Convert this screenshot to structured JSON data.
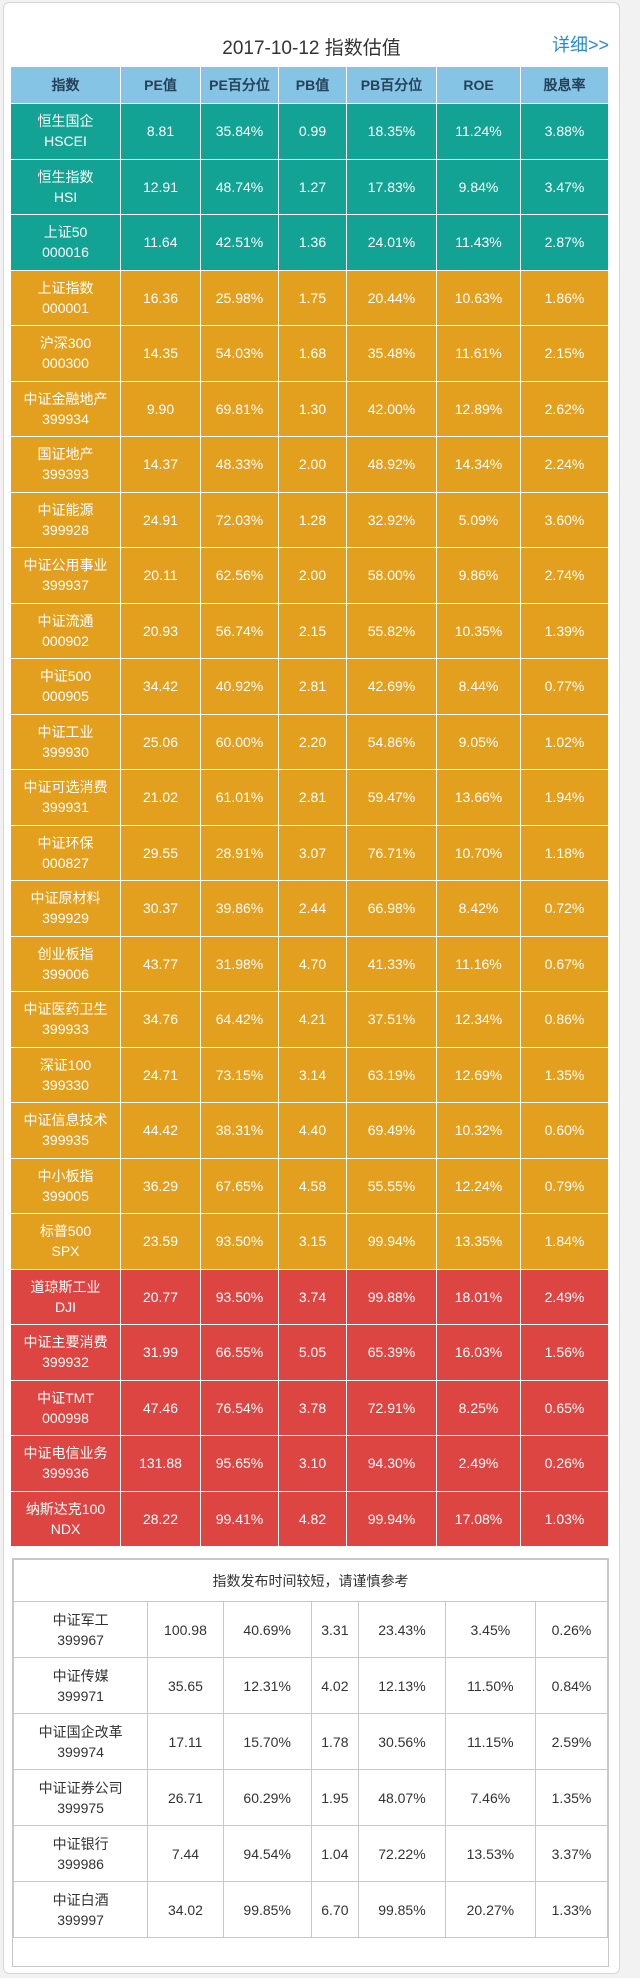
{
  "title": "2017-10-12  指数估值",
  "detail_link": "详细>>",
  "headers": [
    "指数",
    "PE值",
    "PE百分位",
    "PB值",
    "PB百分位",
    "ROE",
    "股息率"
  ],
  "colors": {
    "green": "#13a394",
    "orange": "#e3a01f",
    "red": "#dc4542",
    "header": "#86c4e6"
  },
  "rows": [
    {
      "name": "恒生国企",
      "code": "HSCEI",
      "pe": "8.81",
      "pe_pct": "35.84%",
      "pb": "0.99",
      "pb_pct": "18.35%",
      "roe": "11.24%",
      "div": "3.88%",
      "tier": "green"
    },
    {
      "name": "恒生指数",
      "code": "HSI",
      "pe": "12.91",
      "pe_pct": "48.74%",
      "pb": "1.27",
      "pb_pct": "17.83%",
      "roe": "9.84%",
      "div": "3.47%",
      "tier": "green"
    },
    {
      "name": "上证50",
      "code": "000016",
      "pe": "11.64",
      "pe_pct": "42.51%",
      "pb": "1.36",
      "pb_pct": "24.01%",
      "roe": "11.43%",
      "div": "2.87%",
      "tier": "green"
    },
    {
      "name": "上证指数",
      "code": "000001",
      "pe": "16.36",
      "pe_pct": "25.98%",
      "pb": "1.75",
      "pb_pct": "20.44%",
      "roe": "10.63%",
      "div": "1.86%",
      "tier": "orange"
    },
    {
      "name": "沪深300",
      "code": "000300",
      "pe": "14.35",
      "pe_pct": "54.03%",
      "pb": "1.68",
      "pb_pct": "35.48%",
      "roe": "11.61%",
      "div": "2.15%",
      "tier": "orange"
    },
    {
      "name": "中证金融地产",
      "code": "399934",
      "pe": "9.90",
      "pe_pct": "69.81%",
      "pb": "1.30",
      "pb_pct": "42.00%",
      "roe": "12.89%",
      "div": "2.62%",
      "tier": "orange"
    },
    {
      "name": "国证地产",
      "code": "399393",
      "pe": "14.37",
      "pe_pct": "48.33%",
      "pb": "2.00",
      "pb_pct": "48.92%",
      "roe": "14.34%",
      "div": "2.24%",
      "tier": "orange"
    },
    {
      "name": "中证能源",
      "code": "399928",
      "pe": "24.91",
      "pe_pct": "72.03%",
      "pb": "1.28",
      "pb_pct": "32.92%",
      "roe": "5.09%",
      "div": "3.60%",
      "tier": "orange"
    },
    {
      "name": "中证公用事业",
      "code": "399937",
      "pe": "20.11",
      "pe_pct": "62.56%",
      "pb": "2.00",
      "pb_pct": "58.00%",
      "roe": "9.86%",
      "div": "2.74%",
      "tier": "orange"
    },
    {
      "name": "中证流通",
      "code": "000902",
      "pe": "20.93",
      "pe_pct": "56.74%",
      "pb": "2.15",
      "pb_pct": "55.82%",
      "roe": "10.35%",
      "div": "1.39%",
      "tier": "orange"
    },
    {
      "name": "中证500",
      "code": "000905",
      "pe": "34.42",
      "pe_pct": "40.92%",
      "pb": "2.81",
      "pb_pct": "42.69%",
      "roe": "8.44%",
      "div": "0.77%",
      "tier": "orange"
    },
    {
      "name": "中证工业",
      "code": "399930",
      "pe": "25.06",
      "pe_pct": "60.00%",
      "pb": "2.20",
      "pb_pct": "54.86%",
      "roe": "9.05%",
      "div": "1.02%",
      "tier": "orange"
    },
    {
      "name": "中证可选消费",
      "code": "399931",
      "pe": "21.02",
      "pe_pct": "61.01%",
      "pb": "2.81",
      "pb_pct": "59.47%",
      "roe": "13.66%",
      "div": "1.94%",
      "tier": "orange"
    },
    {
      "name": "中证环保",
      "code": "000827",
      "pe": "29.55",
      "pe_pct": "28.91%",
      "pb": "3.07",
      "pb_pct": "76.71%",
      "roe": "10.70%",
      "div": "1.18%",
      "tier": "orange"
    },
    {
      "name": "中证原材料",
      "code": "399929",
      "pe": "30.37",
      "pe_pct": "39.86%",
      "pb": "2.44",
      "pb_pct": "66.98%",
      "roe": "8.42%",
      "div": "0.72%",
      "tier": "orange"
    },
    {
      "name": "创业板指",
      "code": "399006",
      "pe": "43.77",
      "pe_pct": "31.98%",
      "pb": "4.70",
      "pb_pct": "41.33%",
      "roe": "11.16%",
      "div": "0.67%",
      "tier": "orange"
    },
    {
      "name": "中证医药卫生",
      "code": "399933",
      "pe": "34.76",
      "pe_pct": "64.42%",
      "pb": "4.21",
      "pb_pct": "37.51%",
      "roe": "12.34%",
      "div": "0.86%",
      "tier": "orange"
    },
    {
      "name": "深证100",
      "code": "399330",
      "pe": "24.71",
      "pe_pct": "73.15%",
      "pb": "3.14",
      "pb_pct": "63.19%",
      "roe": "12.69%",
      "div": "1.35%",
      "tier": "orange"
    },
    {
      "name": "中证信息技术",
      "code": "399935",
      "pe": "44.42",
      "pe_pct": "38.31%",
      "pb": "4.40",
      "pb_pct": "69.49%",
      "roe": "10.32%",
      "div": "0.60%",
      "tier": "orange"
    },
    {
      "name": "中小板指",
      "code": "399005",
      "pe": "36.29",
      "pe_pct": "67.65%",
      "pb": "4.58",
      "pb_pct": "55.55%",
      "roe": "12.24%",
      "div": "0.79%",
      "tier": "orange"
    },
    {
      "name": "标普500",
      "code": "SPX",
      "pe": "23.59",
      "pe_pct": "93.50%",
      "pb": "3.15",
      "pb_pct": "99.94%",
      "roe": "13.35%",
      "div": "1.84%",
      "tier": "orange"
    },
    {
      "name": "道琼斯工业",
      "code": "DJI",
      "pe": "20.77",
      "pe_pct": "93.50%",
      "pb": "3.74",
      "pb_pct": "99.88%",
      "roe": "18.01%",
      "div": "2.49%",
      "tier": "red"
    },
    {
      "name": "中证主要消费",
      "code": "399932",
      "pe": "31.99",
      "pe_pct": "66.55%",
      "pb": "5.05",
      "pb_pct": "65.39%",
      "roe": "16.03%",
      "div": "1.56%",
      "tier": "red"
    },
    {
      "name": "中证TMT",
      "code": "000998",
      "pe": "47.46",
      "pe_pct": "76.54%",
      "pb": "3.78",
      "pb_pct": "72.91%",
      "roe": "8.25%",
      "div": "0.65%",
      "tier": "red"
    },
    {
      "name": "中证电信业务",
      "code": "399936",
      "pe": "131.88",
      "pe_pct": "95.65%",
      "pb": "3.10",
      "pb_pct": "94.30%",
      "roe": "2.49%",
      "div": "0.26%",
      "tier": "red"
    },
    {
      "name": "纳斯达克100",
      "code": "NDX",
      "pe": "28.22",
      "pe_pct": "99.41%",
      "pb": "4.82",
      "pb_pct": "99.94%",
      "roe": "17.08%",
      "div": "1.03%",
      "tier": "red"
    }
  ],
  "secondary": {
    "note": "指数发布时间较短，请谨慎参考",
    "rows": [
      {
        "name": "中证军工",
        "code": "399967",
        "pe": "100.98",
        "pe_pct": "40.69%",
        "pb": "3.31",
        "pb_pct": "23.43%",
        "roe": "3.45%",
        "div": "0.26%"
      },
      {
        "name": "中证传媒",
        "code": "399971",
        "pe": "35.65",
        "pe_pct": "12.31%",
        "pb": "4.02",
        "pb_pct": "12.13%",
        "roe": "11.50%",
        "div": "0.84%"
      },
      {
        "name": "中证国企改革",
        "code": "399974",
        "pe": "17.11",
        "pe_pct": "15.70%",
        "pb": "1.78",
        "pb_pct": "30.56%",
        "roe": "11.15%",
        "div": "2.59%"
      },
      {
        "name": "中证证券公司",
        "code": "399975",
        "pe": "26.71",
        "pe_pct": "60.29%",
        "pb": "1.95",
        "pb_pct": "48.07%",
        "roe": "7.46%",
        "div": "1.35%"
      },
      {
        "name": "中证银行",
        "code": "399986",
        "pe": "7.44",
        "pe_pct": "94.54%",
        "pb": "1.04",
        "pb_pct": "72.22%",
        "roe": "13.53%",
        "div": "3.37%"
      },
      {
        "name": "中证白酒",
        "code": "399997",
        "pe": "34.02",
        "pe_pct": "99.85%",
        "pb": "6.70",
        "pb_pct": "99.85%",
        "roe": "20.27%",
        "div": "1.33%"
      }
    ]
  }
}
